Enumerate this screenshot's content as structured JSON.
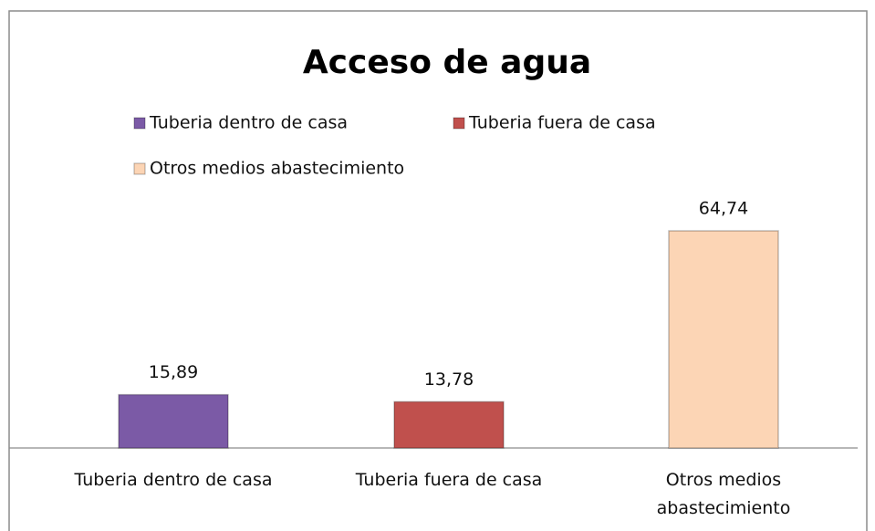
{
  "chart_data": {
    "type": "bar",
    "title": "Acceso de agua",
    "categories": [
      "Tuberia dentro de casa",
      "Tuberia fuera de casa",
      "Otros medios abastecimiento"
    ],
    "values": [
      15.89,
      13.78,
      64.74
    ],
    "value_labels": [
      "15,89",
      "13,78",
      "64,74"
    ],
    "colors": [
      "#7b5aa6",
      "#c0504d",
      "#fcd5b5"
    ],
    "legend": true
  }
}
